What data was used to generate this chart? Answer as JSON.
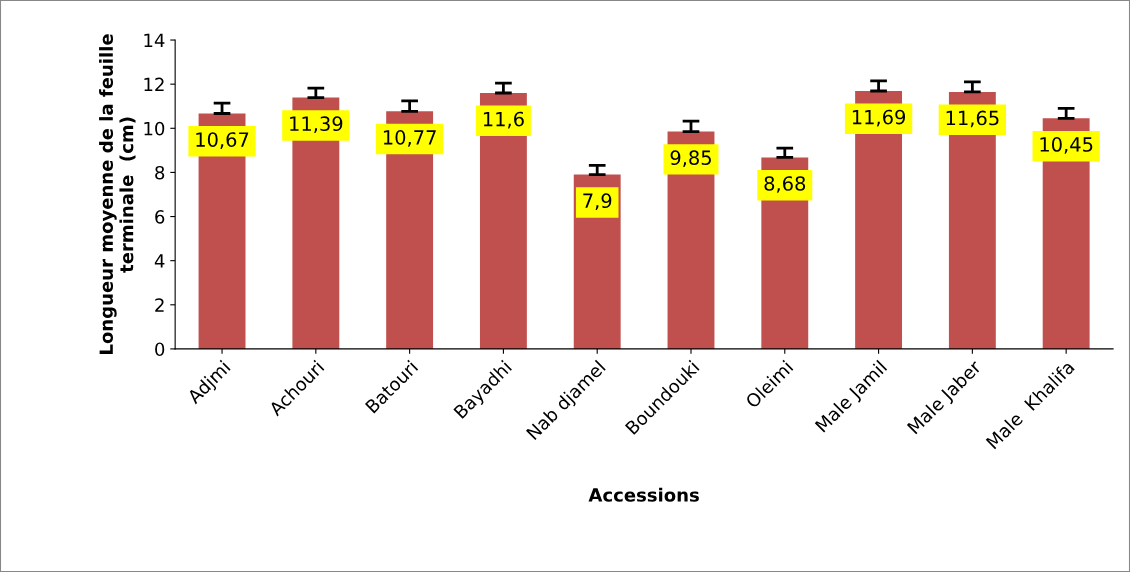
{
  "chart_data": {
    "type": "bar",
    "xlabel": "Accessions",
    "ylabel": "Longueur moyenne de la feuille\nterminale  (cm)",
    "categories": [
      "Adjmi",
      "Achouri",
      "Batouri",
      "Bayadhi",
      "Nab djamel",
      "Boundouki",
      "Oleimi",
      "Male Jamil",
      "Male Jaber",
      "Male  Khalifa"
    ],
    "values": [
      10.67,
      11.39,
      10.77,
      11.6,
      7.9,
      9.85,
      8.68,
      11.69,
      11.65,
      10.45
    ],
    "errors": [
      [
        10.67,
        11.14
      ],
      [
        11.39,
        11.82
      ],
      [
        10.77,
        11.24
      ],
      [
        11.6,
        12.05
      ],
      [
        7.9,
        8.32
      ],
      [
        9.85,
        10.32
      ],
      [
        8.68,
        9.1
      ],
      [
        11.69,
        12.15
      ],
      [
        11.65,
        12.1
      ],
      [
        10.45,
        10.9
      ]
    ],
    "value_labels": [
      "10,67",
      "11,39",
      "10,77",
      "11,6",
      "7,9",
      "9,85",
      "8,68",
      "11,69",
      "11,65",
      "10,45"
    ],
    "color": "#c0504d",
    "ylim": [
      0,
      14
    ],
    "yticks": [
      0,
      2,
      4,
      6,
      8,
      10,
      12,
      14
    ],
    "grid": false,
    "legend": false
  }
}
